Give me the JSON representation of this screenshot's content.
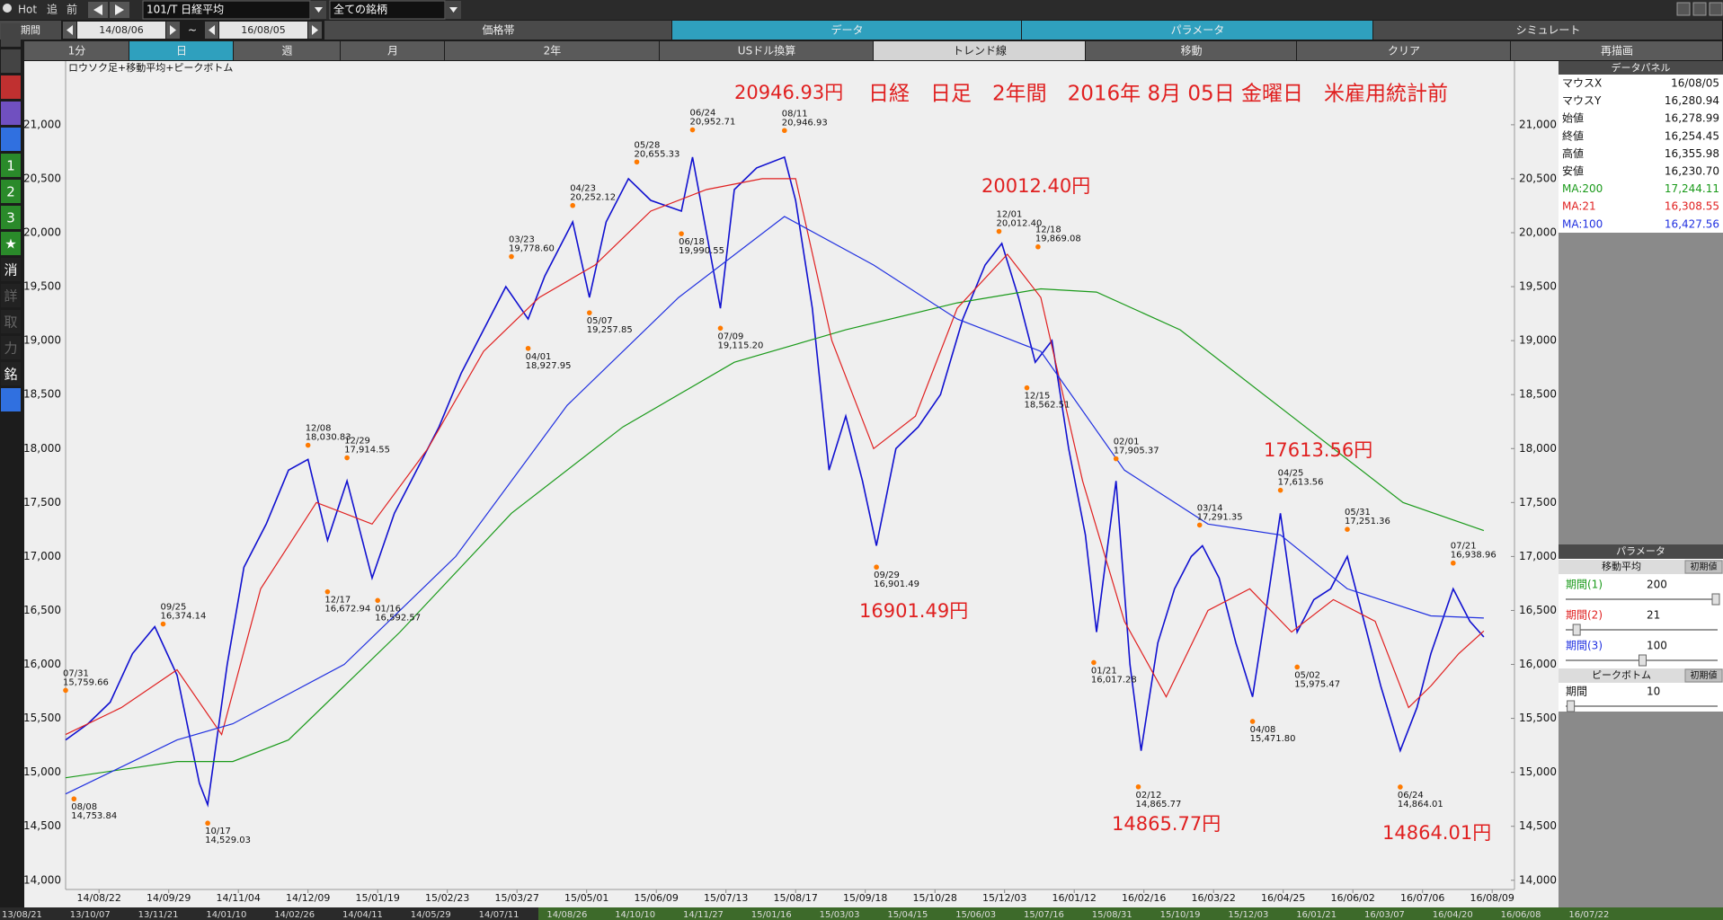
{
  "toolbar": {
    "hot": "Hot",
    "chase": "追",
    "prev": "前",
    "symbol": "101/T 日経平均",
    "universe": "全ての銘柄",
    "period_label": "期間",
    "date_from": "14/08/06",
    "tilde": "~",
    "date_to": "16/08/05",
    "tabs": [
      "価格帯",
      "データ",
      "パラメータ",
      "シミュレート"
    ],
    "buttons": [
      "1分",
      "日",
      "週",
      "月",
      "2年",
      "USドル換算",
      "トレンド線",
      "移動",
      "クリア",
      "再描画"
    ]
  },
  "side_icons": [
    "1",
    "2",
    "3",
    "★",
    "消",
    "詳",
    "取",
    "力",
    "銘"
  ],
  "data_panel": {
    "title": "データパネル",
    "rows": [
      [
        "マウスX",
        "16/08/05"
      ],
      [
        "マウスY",
        "16,280.94"
      ],
      [
        "始値",
        "16,278.99"
      ],
      [
        "終値",
        "16,254.45"
      ],
      [
        "高値",
        "16,355.98"
      ],
      [
        "安値",
        "16,230.70"
      ]
    ],
    "ma_values": [
      "17,244.11",
      "16,308.55",
      "16,427.56"
    ]
  },
  "param_panel": {
    "title": "パラメータ",
    "ma_title": "移動平均",
    "reset": "初期値",
    "rows": [
      [
        "期間(1)",
        "200"
      ],
      [
        "期間(2)",
        "21"
      ],
      [
        "期間(3)",
        "100"
      ]
    ],
    "pb_title": "ピークボトム",
    "pb_reset": "初期値",
    "pb_row": [
      "期間",
      "10"
    ]
  },
  "bottom_dates": [
    "13/08/21",
    "13/10/07",
    "13/11/21",
    "14/01/10",
    "14/02/26",
    "14/04/11",
    "14/05/29",
    "14/07/11",
    "14/08/26",
    "14/10/10",
    "14/11/27",
    "15/01/16",
    "15/03/03",
    "15/04/15",
    "15/06/03",
    "15/07/16",
    "15/08/31",
    "15/10/19",
    "15/12/03",
    "16/01/21",
    "16/03/07",
    "16/04/20",
    "16/06/08",
    "16/07/22"
  ],
  "chart_data": {
    "type": "line",
    "subtitle": "ロウソク足+移動平均+ピークボトム",
    "title": "日経　日足　2年間　2016年 8月 05日 金曜日　米雇用統計前",
    "xlim": [
      0,
      520
    ],
    "ylim": [
      13790,
      21590
    ],
    "grid": false,
    "xticks": [
      {
        "value": 12,
        "label": "14/08/22"
      },
      {
        "value": 37,
        "label": "14/09/29"
      },
      {
        "value": 62,
        "label": "14/11/04"
      },
      {
        "value": 87,
        "label": "14/12/09"
      },
      {
        "value": 112,
        "label": "15/01/19"
      },
      {
        "value": 137,
        "label": "15/02/23"
      },
      {
        "value": 162,
        "label": "15/03/27"
      },
      {
        "value": 187,
        "label": "15/05/01"
      },
      {
        "value": 212,
        "label": "15/06/09"
      },
      {
        "value": 237,
        "label": "15/07/13"
      },
      {
        "value": 262,
        "label": "15/08/17"
      },
      {
        "value": 287,
        "label": "15/09/18"
      },
      {
        "value": 312,
        "label": "15/10/28"
      },
      {
        "value": 337,
        "label": "15/12/03"
      },
      {
        "value": 362,
        "label": "16/01/12"
      },
      {
        "value": 387,
        "label": "16/02/16"
      },
      {
        "value": 412,
        "label": "16/03/22"
      },
      {
        "value": 437,
        "label": "16/04/25"
      },
      {
        "value": 462,
        "label": "16/06/02"
      },
      {
        "value": 487,
        "label": "16/07/06"
      },
      {
        "value": 512,
        "label": "16/08/09"
      }
    ],
    "yticks": [
      {
        "value": 14000,
        "label": "14,000"
      },
      {
        "value": 14500,
        "label": "14,500"
      },
      {
        "value": 15000,
        "label": "15,000"
      },
      {
        "value": 15500,
        "label": "15,500"
      },
      {
        "value": 16000,
        "label": "16,000"
      },
      {
        "value": 16500,
        "label": "16,500"
      },
      {
        "value": 17000,
        "label": "17,000"
      },
      {
        "value": 17500,
        "label": "17,500"
      },
      {
        "value": 18000,
        "label": "18,000"
      },
      {
        "value": 18500,
        "label": "18,500"
      },
      {
        "value": 19000,
        "label": "19,000"
      },
      {
        "value": 19500,
        "label": "19,500"
      },
      {
        "value": 20000,
        "label": "20,000"
      },
      {
        "value": 20500,
        "label": "20,500"
      },
      {
        "value": 21000,
        "label": "21,000"
      }
    ],
    "series": [
      {
        "color": "#1010d0",
        "x": [
          0,
          8,
          16,
          24,
          32,
          40,
          48,
          51,
          58,
          64,
          72,
          80,
          87,
          94,
          101,
          110,
          118,
          126,
          134,
          142,
          150,
          158,
          166,
          172,
          182,
          188,
          194,
          202,
          210,
          221,
          225,
          235,
          240,
          248,
          258,
          262,
          268,
          274,
          280,
          286,
          291,
          298,
          306,
          314,
          322,
          330,
          336,
          342,
          348,
          354,
          360,
          366,
          370,
          377,
          382,
          386,
          392,
          398,
          404,
          408,
          414,
          420,
          426,
          432,
          436,
          442,
          448,
          454,
          460,
          466,
          472,
          479,
          485,
          490,
          498,
          504,
          509
        ],
        "values": [
          15300,
          15450,
          15650,
          16100,
          16350,
          15900,
          14900,
          14700,
          16000,
          16900,
          17300,
          17800,
          17900,
          17150,
          17700,
          16800,
          17400,
          17800,
          18200,
          18700,
          19100,
          19500,
          19200,
          19600,
          20100,
          19400,
          20100,
          20500,
          20300,
          20200,
          20700,
          19300,
          20400,
          20600,
          20700,
          20300,
          19300,
          17800,
          18300,
          17700,
          17100,
          18000,
          18200,
          18500,
          19200,
          19700,
          19900,
          19400,
          18800,
          19000,
          18000,
          17200,
          16300,
          17700,
          16000,
          15200,
          16200,
          16700,
          17000,
          17100,
          16800,
          16200,
          15700,
          16700,
          17400,
          16300,
          16600,
          16700,
          17000,
          16400,
          15800,
          15200,
          15600,
          16100,
          16700,
          16400,
          16254
        ]
      },
      {
        "name": "MA:200",
        "color": "#1a9a1a",
        "x": [
          0,
          40,
          60,
          80,
          120,
          160,
          200,
          240,
          280,
          320,
          350,
          370,
          400,
          440,
          480,
          509
        ],
        "values": [
          14950,
          15100,
          15100,
          15300,
          16300,
          17400,
          18200,
          18800,
          19100,
          19350,
          19480,
          19450,
          19100,
          18300,
          17500,
          17240
        ]
      },
      {
        "name": "MA:21",
        "color": "#e02020",
        "x": [
          0,
          20,
          40,
          56,
          70,
          90,
          110,
          130,
          150,
          170,
          190,
          210,
          230,
          250,
          262,
          275,
          290,
          305,
          320,
          338,
          350,
          365,
          380,
          395,
          410,
          425,
          440,
          455,
          470,
          482,
          490,
          500,
          509
        ],
        "values": [
          15350,
          15600,
          15950,
          15350,
          16700,
          17500,
          17300,
          18000,
          18900,
          19400,
          19700,
          20200,
          20400,
          20500,
          20500,
          19000,
          18000,
          18300,
          19300,
          19800,
          19400,
          17700,
          16400,
          15700,
          16500,
          16700,
          16300,
          16600,
          16400,
          15600,
          15800,
          16100,
          16310
        ]
      },
      {
        "name": "MA:100",
        "color": "#2030e0",
        "x": [
          0,
          40,
          60,
          100,
          140,
          180,
          220,
          258,
          290,
          320,
          350,
          380,
          410,
          436,
          460,
          490,
          509
        ],
        "values": [
          14800,
          15300,
          15450,
          16000,
          17000,
          18400,
          19400,
          20150,
          19700,
          19200,
          18900,
          17800,
          17300,
          17200,
          16700,
          16450,
          16430
        ]
      }
    ],
    "peaks": {
      "color": "#ff7a00",
      "x": [
        0,
        35,
        87,
        101,
        160,
        182,
        205,
        225,
        258,
        335,
        349,
        377,
        407,
        436,
        460,
        498
      ],
      "values": [
        15759.66,
        16374.14,
        18030.83,
        17914.55,
        19778.6,
        20252.12,
        20655.33,
        20952.71,
        20946.93,
        20012.4,
        19869.08,
        17905.37,
        17291.35,
        17613.56,
        17251.36,
        16938.96
      ],
      "value_labels": [
        "15,759.66",
        "16,374.14",
        "18,030.83",
        "17,914.55",
        "19,778.60",
        "20,252.12",
        "20,655.33",
        "20,952.71",
        "20,946.93",
        "20,012.40",
        "19,869.08",
        "17,905.37",
        "17,291.35",
        "17,613.56",
        "17,251.36",
        "16,938.96"
      ],
      "date_labels": [
        "07/31",
        "09/25",
        "12/08",
        "12/29",
        "03/23",
        "04/23",
        "05/28",
        "06/24",
        "08/11",
        "12/01",
        "12/18",
        "02/01",
        "03/14",
        "04/25",
        "05/31",
        "07/21"
      ]
    },
    "bottoms": {
      "color": "#ff7a00",
      "x": [
        3,
        51,
        94,
        112,
        166,
        188,
        221,
        235,
        291,
        345,
        369,
        385,
        426,
        442,
        479
      ],
      "values": [
        14753.84,
        14529.03,
        16672.94,
        16592.57,
        18927.95,
        19257.85,
        19990.55,
        19115.2,
        16901.49,
        18562.51,
        16017.28,
        14865.77,
        15471.8,
        15975.47,
        14864.01
      ],
      "value_labels": [
        "14,753.84",
        "14,529.03",
        "16,672.94",
        "16,592.57",
        "18,927.95",
        "19,257.85",
        "19,990.55",
        "19,115.20",
        "16,901.49",
        "18,562.51",
        "16,017.28",
        "14,865.77",
        "15,471.80",
        "15,975.47",
        "14,864.01"
      ],
      "date_labels": [
        "08/08",
        "10/17",
        "12/17",
        "01/16",
        "04/01",
        "05/07",
        "06/18",
        "07/09",
        "09/29",
        "12/15",
        "01/21",
        "02/12",
        "04/08",
        "05/02",
        "06/24"
      ]
    },
    "annotations": [
      "20946.93円",
      "20012.40円",
      "16901.49円",
      "14865.77円",
      "17613.56円",
      "14864.01円"
    ]
  }
}
